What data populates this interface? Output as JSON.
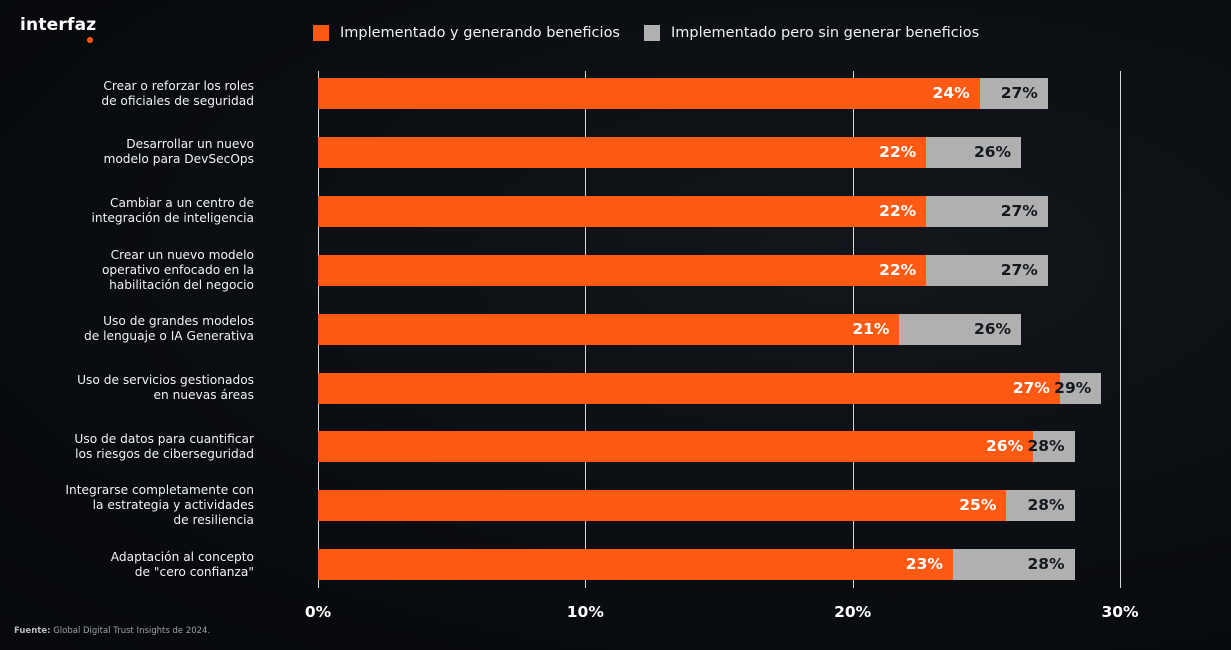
{
  "brand": {
    "logo_text": "interfaz",
    "accent_color": "#ff5a14"
  },
  "footer": {
    "prefix": "Fuente:",
    "text": "Global Digital Trust Insights de 2024."
  },
  "chart_data": {
    "type": "bar",
    "orientation": "horizontal",
    "title": "",
    "xlabel": "",
    "ylabel": "",
    "xlim": [
      0,
      30
    ],
    "xticks": [
      0,
      10,
      20,
      30
    ],
    "xtick_labels": [
      "0%",
      "10%",
      "20%",
      "30%"
    ],
    "grid": true,
    "legend_position": "top",
    "categories": [
      "Crear o reforzar los roles\nde oficiales de seguridad",
      "Desarrollar un nuevo\nmodelo para DevSecOps",
      "Cambiar a un centro de\nintegración de inteligencia",
      "Crear un nuevo modelo\noperativo enfocado en la\nhabilitación del negocio",
      "Uso de grandes modelos\nde lenguaje o IA Generativa",
      "Uso de servicios gestionados\nen nuevas áreas",
      "Uso de datos para cuantificar\nlos riesgos de ciberseguridad",
      "Integrarse completamente con\nla estrategia y actividades\nde resiliencia",
      "Adaptación al concepto\nde \"cero confianza\""
    ],
    "series": [
      {
        "name": "Implementado y generando beneficios",
        "color": "#ff5a14",
        "label_color": "#ffffff",
        "values": [
          24,
          22,
          22,
          22,
          21,
          27,
          26,
          25,
          23
        ]
      },
      {
        "name": "Implementado pero sin generar beneficios",
        "color": "#b0b0b0",
        "label_color": "#14191f",
        "values": [
          27,
          26,
          27,
          27,
          26,
          29,
          28,
          28,
          28
        ]
      }
    ],
    "value_suffix": "%"
  }
}
